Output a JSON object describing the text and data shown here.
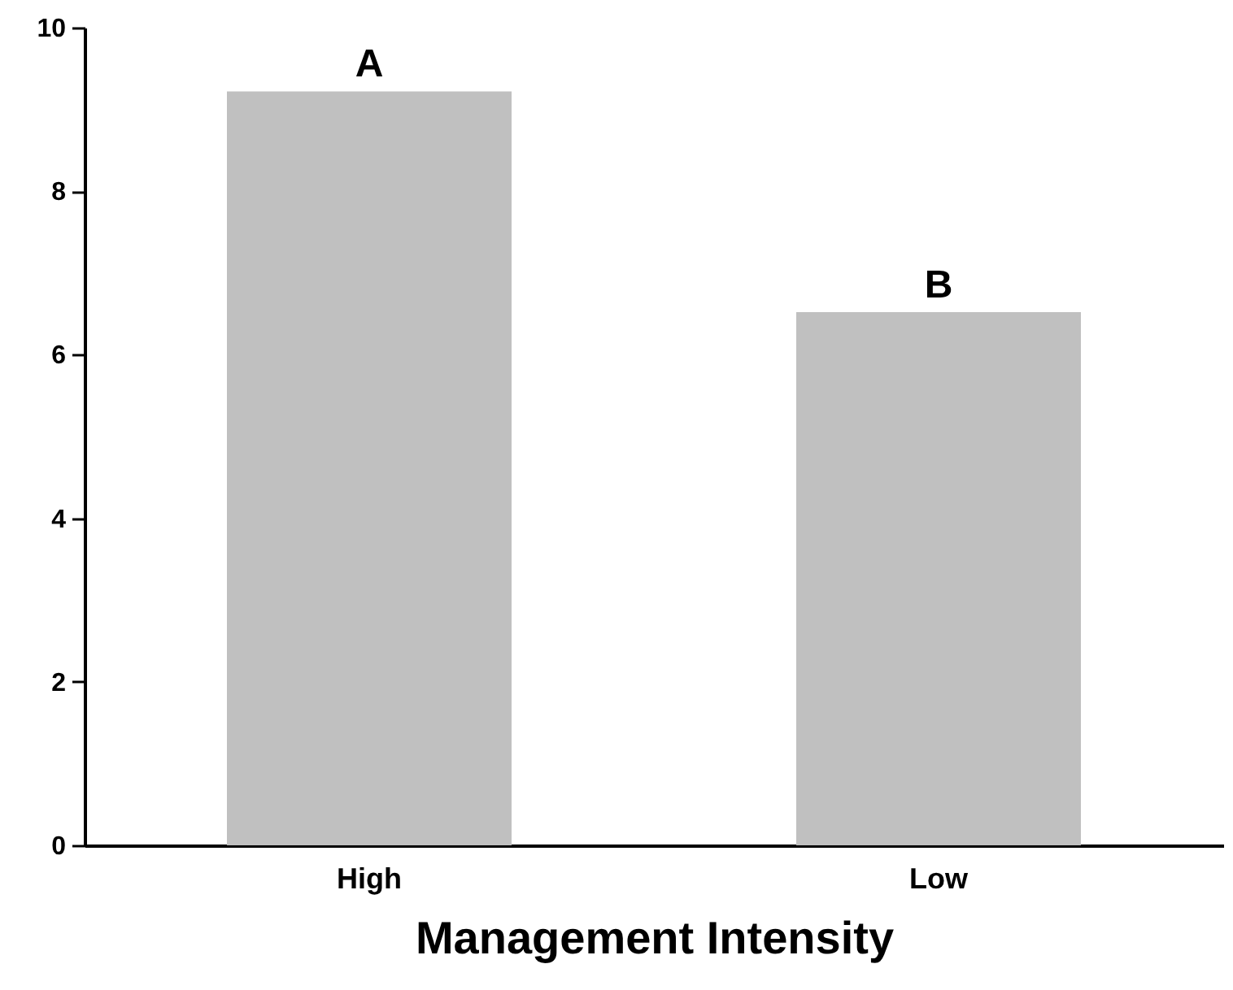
{
  "chart_data": {
    "type": "bar",
    "xlabel": "Management Intensity",
    "categories": [
      "High",
      "Low"
    ],
    "values": [
      9.22,
      6.52
    ],
    "color": "#c0c0c0",
    "ylim": [
      0,
      10
    ],
    "yticks": [
      0,
      2,
      4,
      6,
      8,
      10
    ],
    "grid": false,
    "annotations": [
      {
        "text": "A",
        "x": "High",
        "y": 9.22
      },
      {
        "text": "B",
        "x": "Low",
        "y": 6.52
      }
    ]
  }
}
